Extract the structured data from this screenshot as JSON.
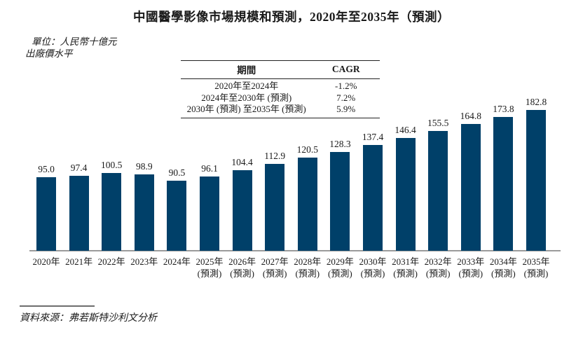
{
  "figure": {
    "title": "中國醫學影像市場規模和預測，2020年至2035年（預測）",
    "unit_note": {
      "line1": "單位：人民幣十億元",
      "line2": "出廠價水平"
    },
    "source": "資料來源：弗若斯特沙利文分析"
  },
  "cagr_table": {
    "headers": {
      "period": "期間",
      "cagr": "CAGR"
    },
    "rows": [
      {
        "period": "2020年至2024年",
        "cagr": "-1.2%"
      },
      {
        "period": "2024年至2030年 (預測)",
        "cagr": "7.2%"
      },
      {
        "period": "2030年 (預測) 至2035年 (預測)",
        "cagr": "5.9%"
      }
    ]
  },
  "chart_data": {
    "type": "bar",
    "title": "中國醫學影像市場規模和預測，2020年至2035年（預測）",
    "unit": "人民幣十億元（出廠價水平）",
    "categories": [
      "2020年",
      "2021年",
      "2022年",
      "2023年",
      "2024年",
      "2025年",
      "2026年",
      "2027年",
      "2028年",
      "2029年",
      "2030年",
      "2031年",
      "2032年",
      "2033年",
      "2034年",
      "2035年"
    ],
    "values": [
      95.0,
      97.4,
      100.5,
      98.9,
      90.5,
      96.1,
      104.4,
      112.9,
      120.5,
      128.3,
      137.4,
      146.4,
      155.5,
      164.8,
      173.8,
      182.8
    ],
    "forecast_start_index": 5,
    "forecast_label": "(預測)",
    "bar_color": "#004069",
    "value_labels_shown": true,
    "grid": false,
    "ylim": [
      0,
      200
    ],
    "xlabel": "",
    "ylabel": "人民幣十億元"
  }
}
